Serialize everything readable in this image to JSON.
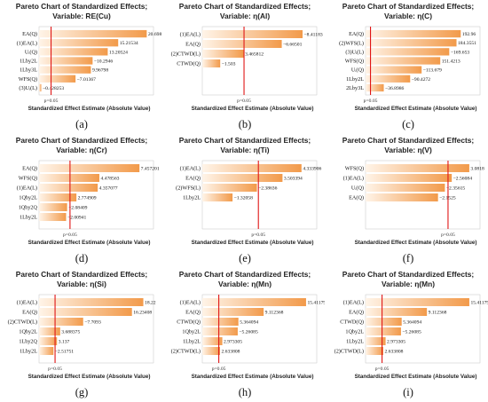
{
  "chart_data": [
    {
      "id": "a",
      "caption": "(a)",
      "type": "bar",
      "title_line1": "Pareto Chart of Standardized Effects;",
      "title_line2": "Variable: RE(Cu)",
      "xlabel": "Standardized Effect Estimate (Absolute Value)",
      "p_label": "p=0.05",
      "xmax": 22,
      "p_value_line": 2.31,
      "categories": [
        "EA(Q)",
        "(1)EA(L)",
        "Uᵢ(Q)",
        "1Lby2L",
        "1Lby3L",
        "WFS(Q)",
        "(3)Uᵢ(L)"
      ],
      "values": [
        20.69825,
        15.21534,
        13.20524,
        -10.2946,
        9.96798,
        -7.01367,
        -0.428253
      ],
      "value_labels": [
        "20.69825",
        "15.21534",
        "13.20524",
        "−10.2946",
        "9.96798",
        "−7.01367",
        "−0.428253"
      ]
    },
    {
      "id": "b",
      "caption": "(b)",
      "type": "bar",
      "title_line1": "Pareto Chart of Standardized Effects;",
      "title_line2": "Variable: η(Al)",
      "xlabel": "Standardized Effect Estimate (Absolute Value)",
      "p_label": "p=0.05",
      "xmax": 9.6,
      "p_value_line": 3.5,
      "categories": [
        "(1)EA(L)",
        "EA(Q)",
        "(2)CTWD(L)",
        "CTWD(Q)"
      ],
      "values": [
        -8.41183,
        -6.66501,
        3.465812,
        -1.503
      ],
      "value_labels": [
        "−8.41183",
        "−6.66501",
        "3.465812",
        "−1.503"
      ]
    },
    {
      "id": "c",
      "caption": "(c)",
      "type": "bar",
      "title_line1": "Pareto Chart of Standardized Effects;",
      "title_line2": "Variable: η(C)",
      "xlabel": "Standardized Effect Estimate (Absolute Value)",
      "p_label": "p=0.05",
      "xmax": 232,
      "p_value_line": 10,
      "categories": [
        "EA(Q)",
        "(2)WFS(L)",
        "(3)Uᵢ(L)",
        "WFS(Q)",
        "Uᵢ(Q)",
        "1Lby2L",
        "2Lby3L"
      ],
      "values": [
        192.96,
        184.3551,
        -169.653,
        151.4213,
        -113.679,
        -90.4272,
        -36.8986
      ],
      "value_labels": [
        "192.96",
        "184.3551",
        "−169.653",
        "151.4213",
        "−113.679",
        "−90.4272",
        "−36.8986"
      ]
    },
    {
      "id": "d",
      "caption": "(d)",
      "type": "bar",
      "title_line1": "Pareto Chart of Standardized Effects;",
      "title_line2": "Variable: η(Cr)",
      "xlabel": "Standardized Effect Estimate (Absolute Value)",
      "p_label": "p=0.05",
      "xmax": 8.5,
      "p_value_line": 2.3,
      "categories": [
        "EA(Q)",
        "WFS(Q)",
        "(1)EA(L)",
        "1Qby2L",
        "1Qby2Q",
        "1Lby2L"
      ],
      "values": [
        7.457201,
        4.478563,
        4.357077,
        2.774909,
        -2.08409,
        -2.00941
      ],
      "value_labels": [
        "7.457201",
        "4.478563",
        "4.357077",
        "2.774909",
        "−2.08409",
        "−2.00941"
      ]
    },
    {
      "id": "e",
      "caption": "(e)",
      "type": "bar",
      "title_line1": "Pareto Chart of Standardized Effects;",
      "title_line2": "Variable: η(Ti)",
      "xlabel": "Standardized Effect Estimate (Absolute Value)",
      "p_label": "p=0.05",
      "xmax": 5.0,
      "p_value_line": 2.45,
      "categories": [
        "(1)EA(L)",
        "EA(Q)",
        "(2)WFS(L)",
        "1Lby2L"
      ],
      "values": [
        4.333906,
        3.503394,
        -2.38636,
        -1.32058
      ],
      "value_labels": [
        "4.333906",
        "3.503394",
        "−2.38636",
        "−1.32058"
      ]
    },
    {
      "id": "f",
      "caption": "(f)",
      "type": "bar",
      "title_line1": "Pareto Chart of Standardized Effects;",
      "title_line2": "Variable: η(V)",
      "xlabel": "Standardized Effect Estimate (Absolute Value)",
      "p_label": "p=0.05",
      "xmax": 3.4,
      "p_value_line": 2.45,
      "categories": [
        "WFS(Q)",
        "(1)EA(L)",
        "Uᵢ(Q)",
        "EA(Q)"
      ],
      "values": [
        3.0818,
        -2.56084,
        -2.35615,
        -2.1525
      ],
      "value_labels": [
        "3.0818",
        "−2.56084",
        "−2.35615",
        "−2.1525"
      ]
    },
    {
      "id": "g",
      "caption": "(g)",
      "type": "bar",
      "title_line1": "Pareto Chart of Standardized Effects;",
      "title_line2": "Variable: η(Si)",
      "xlabel": "Standardized Effect Estimate (Absolute Value)",
      "p_label": "p=0.05",
      "xmax": 20,
      "p_value_line": 2.8,
      "categories": [
        "(1)EA(L)",
        "EA(Q)",
        "(2)CTWD(L)",
        "1Qby2L",
        "1Lby2Q",
        "1Lby2L"
      ],
      "values": [
        18.22,
        16.23408,
        -7.7093,
        3.688375,
        3.137,
        -2.51751
      ],
      "value_labels": [
        "18.22",
        "16.23408",
        "−7.7093",
        "3.688375",
        "3.137",
        "−2.51751"
      ]
    },
    {
      "id": "h",
      "caption": "(h)",
      "type": "bar",
      "title_line1": "Pareto Chart of Standardized Effects;",
      "title_line2": "Variable: η(Mn)",
      "xlabel": "Standardized Effect Estimate (Absolute Value)",
      "p_label": "p=0.05",
      "xmax": 17,
      "p_value_line": 2.45,
      "categories": [
        "(1)EA(L)",
        "EA(Q)",
        "CTWD(Q)",
        "1Qby2L",
        "1Lby2L",
        "(2)CTWD(L)"
      ],
      "values": [
        15.41179,
        9.112368,
        5.364094,
        -5.26085,
        2.973305,
        2.633808
      ],
      "value_labels": [
        "15.41179",
        "9.112368",
        "5.364094",
        "−5.26085",
        "2.973305",
        "2.633808"
      ]
    },
    {
      "id": "i",
      "caption": "(i)",
      "type": "bar",
      "title_line1": "Pareto Chart of Standardized Effects;",
      "title_line2": "Variable: η(Mn)",
      "xlabel": "Standardized Effect Estimate (Absolute Value)",
      "p_label": "p=0.05",
      "xmax": 17,
      "p_value_line": 2.45,
      "categories": [
        "(1)EA(L)",
        "EA(Q)",
        "CTWD(Q)",
        "1Qby2L",
        "1Lby2L",
        "(2)CTWD(L)"
      ],
      "values": [
        15.41179,
        9.112368,
        5.364094,
        -5.26085,
        2.973305,
        2.633808
      ],
      "value_labels": [
        "15.41179",
        "9.112368",
        "5.364094",
        "−5.26085",
        "2.973305",
        "2.633808"
      ]
    }
  ],
  "colors": {
    "bar_dark": "#f29a4a",
    "bar_light": "#fff4e8",
    "p_line": "#e01515"
  }
}
